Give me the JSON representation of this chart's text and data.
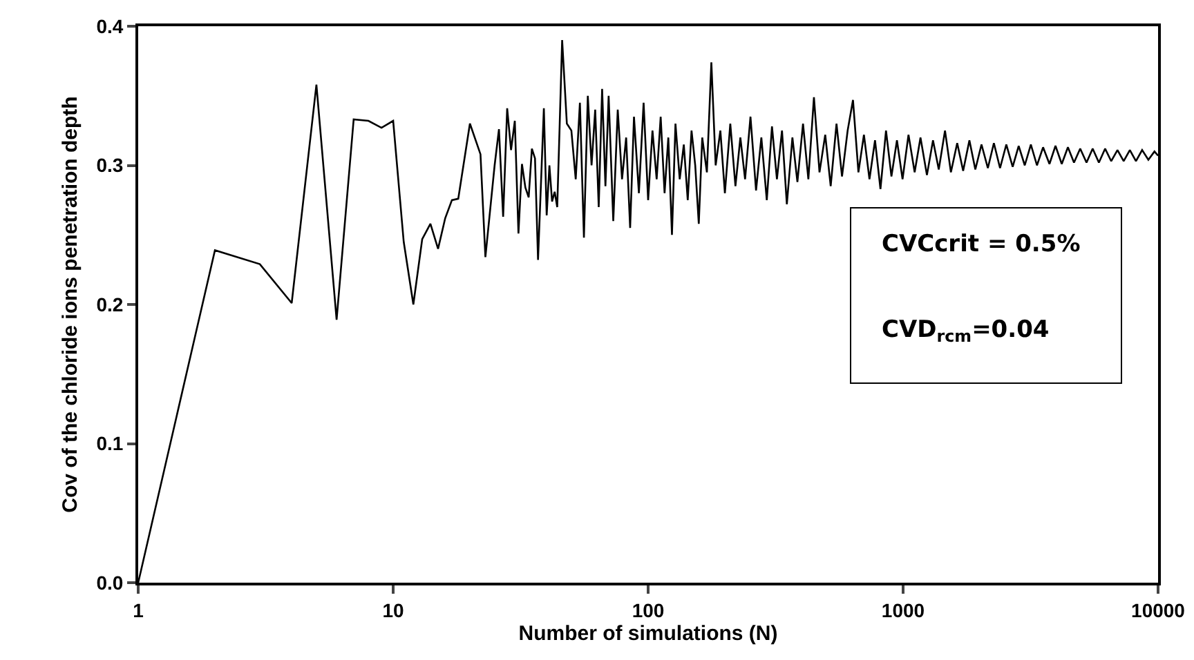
{
  "chart_data": {
    "type": "line",
    "xlabel": "Number of simulations (N)",
    "ylabel": "Cov of the chloride ions penetration depth",
    "x": [
      1,
      2,
      3,
      4,
      5,
      6,
      7,
      8,
      9,
      10,
      11,
      12,
      13,
      14,
      15,
      16,
      17,
      18,
      20,
      22,
      23,
      25,
      26,
      27,
      28,
      29,
      30,
      31,
      32,
      33,
      34,
      35,
      36,
      37,
      39,
      40,
      41,
      42,
      43,
      44,
      45,
      46,
      48,
      50,
      52,
      54,
      56,
      58,
      60,
      62,
      64,
      66,
      68,
      70,
      73,
      76,
      79,
      82,
      85,
      88,
      92,
      96,
      100,
      104,
      108,
      112,
      116,
      120,
      124,
      128,
      133,
      138,
      143,
      148,
      153,
      158,
      163,
      170,
      177,
      184,
      192,
      200,
      210,
      220,
      230,
      240,
      252,
      265,
      278,
      292,
      306,
      320,
      335,
      350,
      368,
      385,
      405,
      425,
      447,
      470,
      495,
      520,
      548,
      576,
      606,
      636,
      668,
      702,
      738,
      776,
      815,
      857,
      900,
      946,
      995,
      1050,
      1110,
      1170,
      1240,
      1310,
      1380,
      1460,
      1540,
      1630,
      1720,
      1820,
      1920,
      2030,
      2150,
      2270,
      2400,
      2540,
      2690,
      2840,
      3000,
      3170,
      3350,
      3540,
      3750,
      3960,
      4190,
      4430,
      4680,
      4950,
      5240,
      5540,
      5860,
      6200,
      6550,
      6930,
      7330,
      7750,
      8190,
      8660,
      9160,
      9680,
      10000
    ],
    "series": [
      {
        "color": "#000000",
        "values": [
          0,
          0.239,
          0.229,
          0.201,
          0.358,
          0.189,
          0.333,
          0.332,
          0.327,
          0.332,
          0.245,
          0.2,
          0.247,
          0.258,
          0.24,
          0.262,
          0.275,
          0.276,
          0.33,
          0.308,
          0.234,
          0.3,
          0.326,
          0.263,
          0.341,
          0.311,
          0.332,
          0.251,
          0.301,
          0.284,
          0.277,
          0.312,
          0.305,
          0.232,
          0.341,
          0.264,
          0.3,
          0.274,
          0.281,
          0.27,
          0.33,
          0.39,
          0.33,
          0.325,
          0.29,
          0.345,
          0.248,
          0.35,
          0.3,
          0.34,
          0.27,
          0.355,
          0.285,
          0.35,
          0.26,
          0.34,
          0.29,
          0.32,
          0.255,
          0.335,
          0.28,
          0.345,
          0.275,
          0.325,
          0.29,
          0.335,
          0.28,
          0.32,
          0.25,
          0.33,
          0.29,
          0.315,
          0.275,
          0.325,
          0.3,
          0.258,
          0.32,
          0.295,
          0.374,
          0.3,
          0.325,
          0.28,
          0.33,
          0.285,
          0.32,
          0.29,
          0.335,
          0.282,
          0.32,
          0.275,
          0.328,
          0.29,
          0.325,
          0.272,
          0.32,
          0.288,
          0.33,
          0.29,
          0.349,
          0.295,
          0.322,
          0.285,
          0.33,
          0.292,
          0.325,
          0.347,
          0.295,
          0.322,
          0.29,
          0.318,
          0.283,
          0.325,
          0.292,
          0.318,
          0.29,
          0.322,
          0.295,
          0.32,
          0.293,
          0.318,
          0.297,
          0.325,
          0.295,
          0.316,
          0.296,
          0.318,
          0.297,
          0.315,
          0.298,
          0.316,
          0.298,
          0.315,
          0.299,
          0.314,
          0.3,
          0.315,
          0.3,
          0.313,
          0.301,
          0.314,
          0.301,
          0.313,
          0.302,
          0.312,
          0.302,
          0.312,
          0.302,
          0.312,
          0.303,
          0.311,
          0.303,
          0.311,
          0.303,
          0.311,
          0.304,
          0.31,
          0.307
        ]
      }
    ],
    "log": "x",
    "xlim": [
      1,
      10000
    ],
    "xticks": [
      1,
      10,
      100,
      1000,
      10000
    ],
    "ylim": [
      0,
      0.4
    ],
    "yticks": [
      {
        "value": 0,
        "label": "0.0"
      },
      {
        "value": 0.1,
        "label": "0.1"
      },
      {
        "value": 0.2,
        "label": "0.2"
      },
      {
        "value": 0.3,
        "label": "0.3"
      },
      {
        "value": 0.4,
        "label": "0.4"
      }
    ],
    "marker": "none",
    "line_style": "solid",
    "annotations": [
      "CVCcrit = 0.5%",
      "CVD$_{rcm}$=0.04"
    ]
  }
}
